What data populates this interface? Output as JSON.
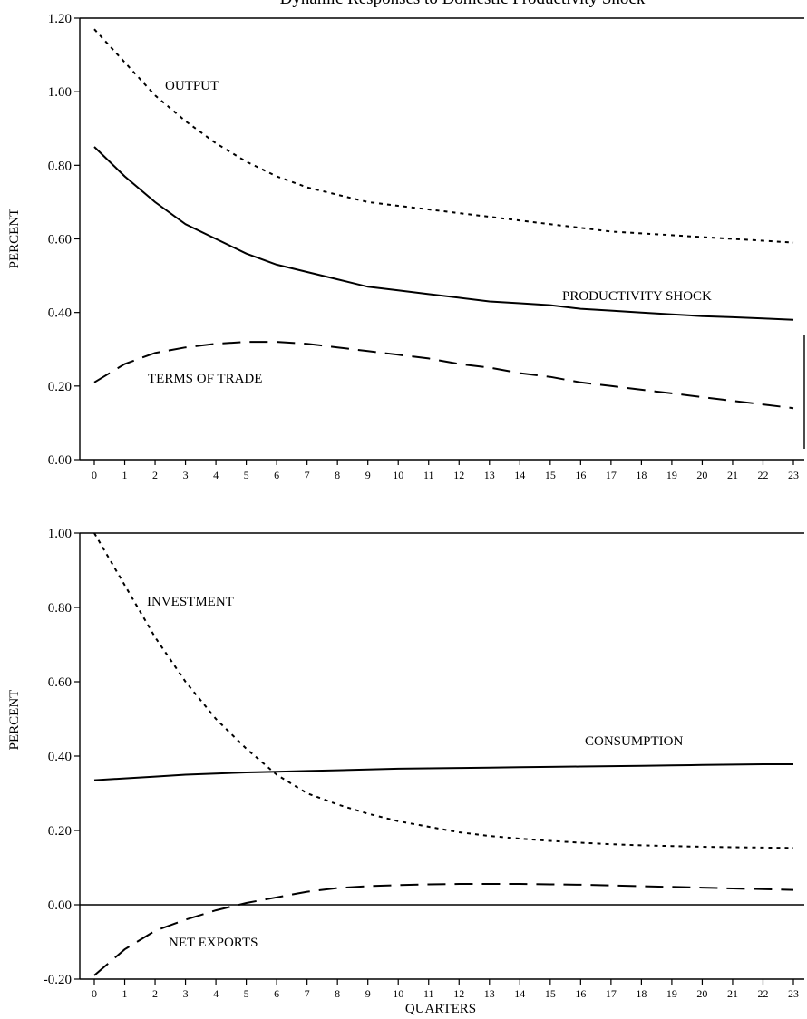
{
  "figure_title": "Dynamic Responses to Domestic Productivity Shock",
  "chart_data": [
    {
      "type": "line",
      "title": "Dynamic Responses to Domestic Productivity Shock",
      "xlabel": "",
      "ylabel": "PERCENT",
      "x": [
        0,
        1,
        2,
        3,
        4,
        5,
        6,
        7,
        8,
        9,
        10,
        11,
        12,
        13,
        14,
        15,
        16,
        17,
        18,
        19,
        20,
        21,
        22,
        23
      ],
      "xlim": [
        0,
        23
      ],
      "ylim": [
        0,
        1.2
      ],
      "yticks": [
        "0.00",
        "0.20",
        "0.40",
        "0.60",
        "0.80",
        "1.00",
        "1.20"
      ],
      "xticks": [
        "0",
        "1",
        "2",
        "3",
        "4",
        "5",
        "6",
        "7",
        "8",
        "9",
        "10",
        "11",
        "12",
        "13",
        "14",
        "15",
        "16",
        "17",
        "18",
        "19",
        "20",
        "21",
        "22",
        "23"
      ],
      "grid": false,
      "legend": "inline labels",
      "series": [
        {
          "name": "OUTPUT",
          "style": "dotted",
          "values": [
            1.17,
            1.08,
            0.99,
            0.92,
            0.86,
            0.81,
            0.77,
            0.74,
            0.72,
            0.7,
            0.69,
            0.68,
            0.67,
            0.66,
            0.65,
            0.64,
            0.63,
            0.62,
            0.615,
            0.61,
            0.605,
            0.6,
            0.595,
            0.59
          ]
        },
        {
          "name": "PRODUCTIVITY SHOCK",
          "style": "solid",
          "values": [
            0.85,
            0.77,
            0.7,
            0.64,
            0.6,
            0.56,
            0.53,
            0.51,
            0.49,
            0.47,
            0.46,
            0.45,
            0.44,
            0.43,
            0.425,
            0.42,
            0.41,
            0.405,
            0.4,
            0.395,
            0.39,
            0.387,
            0.384,
            0.38
          ]
        },
        {
          "name": "TERMS OF TRADE",
          "style": "dashed",
          "values": [
            0.21,
            0.26,
            0.29,
            0.305,
            0.315,
            0.32,
            0.32,
            0.315,
            0.305,
            0.295,
            0.285,
            0.275,
            0.26,
            0.25,
            0.235,
            0.225,
            0.21,
            0.2,
            0.19,
            0.18,
            0.17,
            0.16,
            0.15,
            0.14
          ]
        }
      ],
      "annotations": [
        {
          "text": "OUTPUT",
          "series": "OUTPUT"
        },
        {
          "text": "PRODUCTIVITY SHOCK",
          "series": "PRODUCTIVITY SHOCK"
        },
        {
          "text": "TERMS OF TRADE",
          "series": "TERMS OF TRADE"
        }
      ]
    },
    {
      "type": "line",
      "title": "",
      "xlabel": "QUARTERS",
      "ylabel": "PERCENT",
      "x": [
        0,
        1,
        2,
        3,
        4,
        5,
        6,
        7,
        8,
        9,
        10,
        11,
        12,
        13,
        14,
        15,
        16,
        17,
        18,
        19,
        20,
        21,
        22,
        23
      ],
      "xlim": [
        0,
        23
      ],
      "ylim": [
        -0.2,
        1.0
      ],
      "yticks": [
        "-0.20",
        "0.00",
        "0.20",
        "0.40",
        "0.60",
        "0.80",
        "1.00"
      ],
      "xticks": [
        "0",
        "1",
        "2",
        "3",
        "4",
        "5",
        "6",
        "7",
        "8",
        "9",
        "10",
        "11",
        "12",
        "13",
        "14",
        "15",
        "16",
        "17",
        "18",
        "19",
        "20",
        "21",
        "22",
        "23"
      ],
      "grid": false,
      "legend": "inline labels",
      "zero_line": true,
      "series": [
        {
          "name": "INVESTMENT",
          "style": "dotted",
          "values": [
            1.0,
            0.86,
            0.72,
            0.6,
            0.5,
            0.42,
            0.35,
            0.3,
            0.27,
            0.245,
            0.225,
            0.21,
            0.195,
            0.185,
            0.178,
            0.172,
            0.167,
            0.163,
            0.16,
            0.158,
            0.156,
            0.155,
            0.154,
            0.153
          ]
        },
        {
          "name": "CONSUMPTION",
          "style": "solid",
          "values": [
            0.335,
            0.34,
            0.345,
            0.35,
            0.353,
            0.356,
            0.358,
            0.36,
            0.362,
            0.364,
            0.366,
            0.367,
            0.368,
            0.369,
            0.37,
            0.371,
            0.372,
            0.373,
            0.374,
            0.375,
            0.376,
            0.377,
            0.378,
            0.378
          ]
        },
        {
          "name": "NET EXPORTS",
          "style": "dashed",
          "values": [
            -0.19,
            -0.12,
            -0.07,
            -0.04,
            -0.015,
            0.005,
            0.02,
            0.035,
            0.045,
            0.05,
            0.053,
            0.055,
            0.056,
            0.056,
            0.056,
            0.055,
            0.054,
            0.052,
            0.05,
            0.048,
            0.046,
            0.044,
            0.042,
            0.04
          ]
        }
      ],
      "annotations": [
        {
          "text": "INVESTMENT",
          "series": "INVESTMENT"
        },
        {
          "text": "CONSUMPTION",
          "series": "CONSUMPTION"
        },
        {
          "text": "NET EXPORTS",
          "series": "NET EXPORTS"
        }
      ]
    }
  ]
}
